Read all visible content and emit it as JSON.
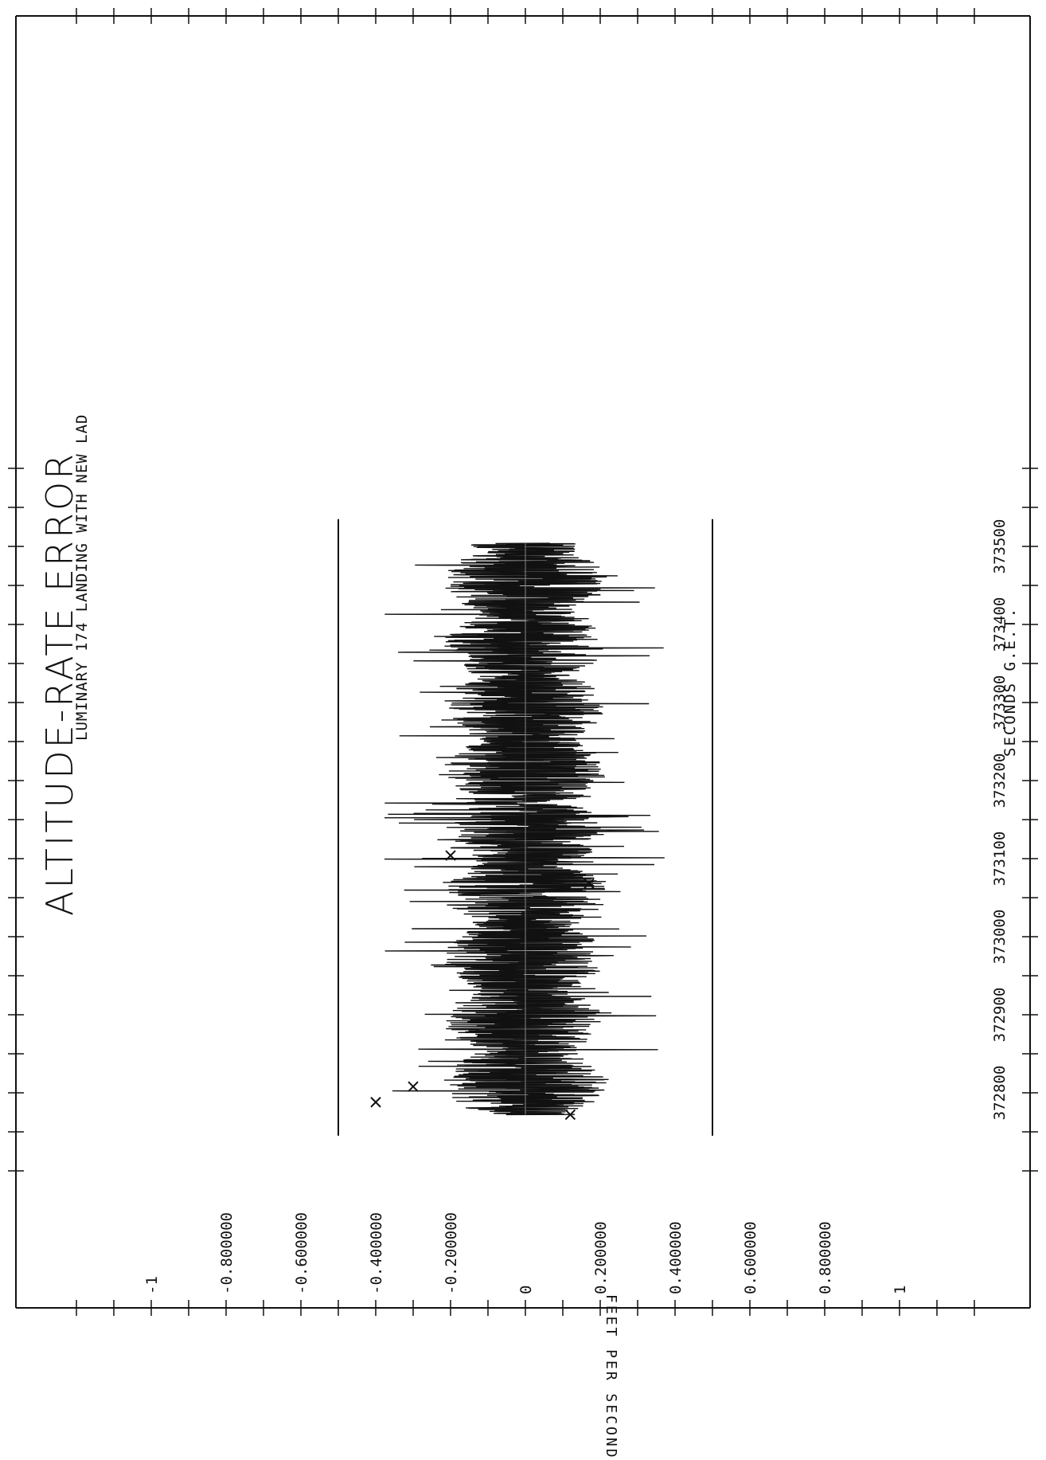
{
  "chart_data": {
    "type": "line",
    "title": "ALTITUDE-RATE ERROR",
    "subtitle": "LUMINARY 174 LANDING WITH NEW LAD",
    "xlabel": "SECONDS G.E.T.",
    "ylabel": "FEET PER SECOND",
    "orientation": "rotated-90-ccw",
    "xlim": [
      372750,
      373550
    ],
    "ylim": [
      -1.0,
      1.0
    ],
    "x_ticks": [
      372800,
      372900,
      373000,
      373100,
      373200,
      373300,
      373400,
      373500
    ],
    "x_tick_labels": [
      "372800",
      "372900",
      "373000",
      "373100",
      "373200",
      "373300",
      "373400",
      "373500"
    ],
    "y_ticks": [
      1,
      0.8,
      0.6,
      0.4,
      0.2,
      0,
      -0.2,
      -0.4,
      -0.6,
      -0.8,
      -1
    ],
    "y_tick_labels": [
      "1",
      "0.800000",
      "0.600000",
      "0.400000",
      "0.200000",
      "0",
      "-0.200000",
      "-0.400000",
      "-0.600000",
      "-0.800000",
      "-1"
    ],
    "limit_lines": [
      0.5,
      -0.5
    ],
    "series": [
      {
        "x_range": [
          372772,
          373504
        ],
        "typical_amplitude": 0.22,
        "peak_amplitude": 0.38,
        "color": "#111111"
      }
    ],
    "markers": [
      {
        "x": 372772,
        "y": 0.12,
        "symbol": "x"
      },
      {
        "x": 372788,
        "y": -0.4,
        "symbol": "x"
      },
      {
        "x": 372808,
        "y": -0.3,
        "symbol": "x"
      },
      {
        "x": 373068,
        "y": 0.17,
        "symbol": "x"
      },
      {
        "x": 373104,
        "y": -0.2,
        "symbol": "x"
      },
      {
        "x": 373300,
        "y": -0.05,
        "symbol": "x"
      }
    ],
    "grid": false,
    "legend": "none"
  }
}
